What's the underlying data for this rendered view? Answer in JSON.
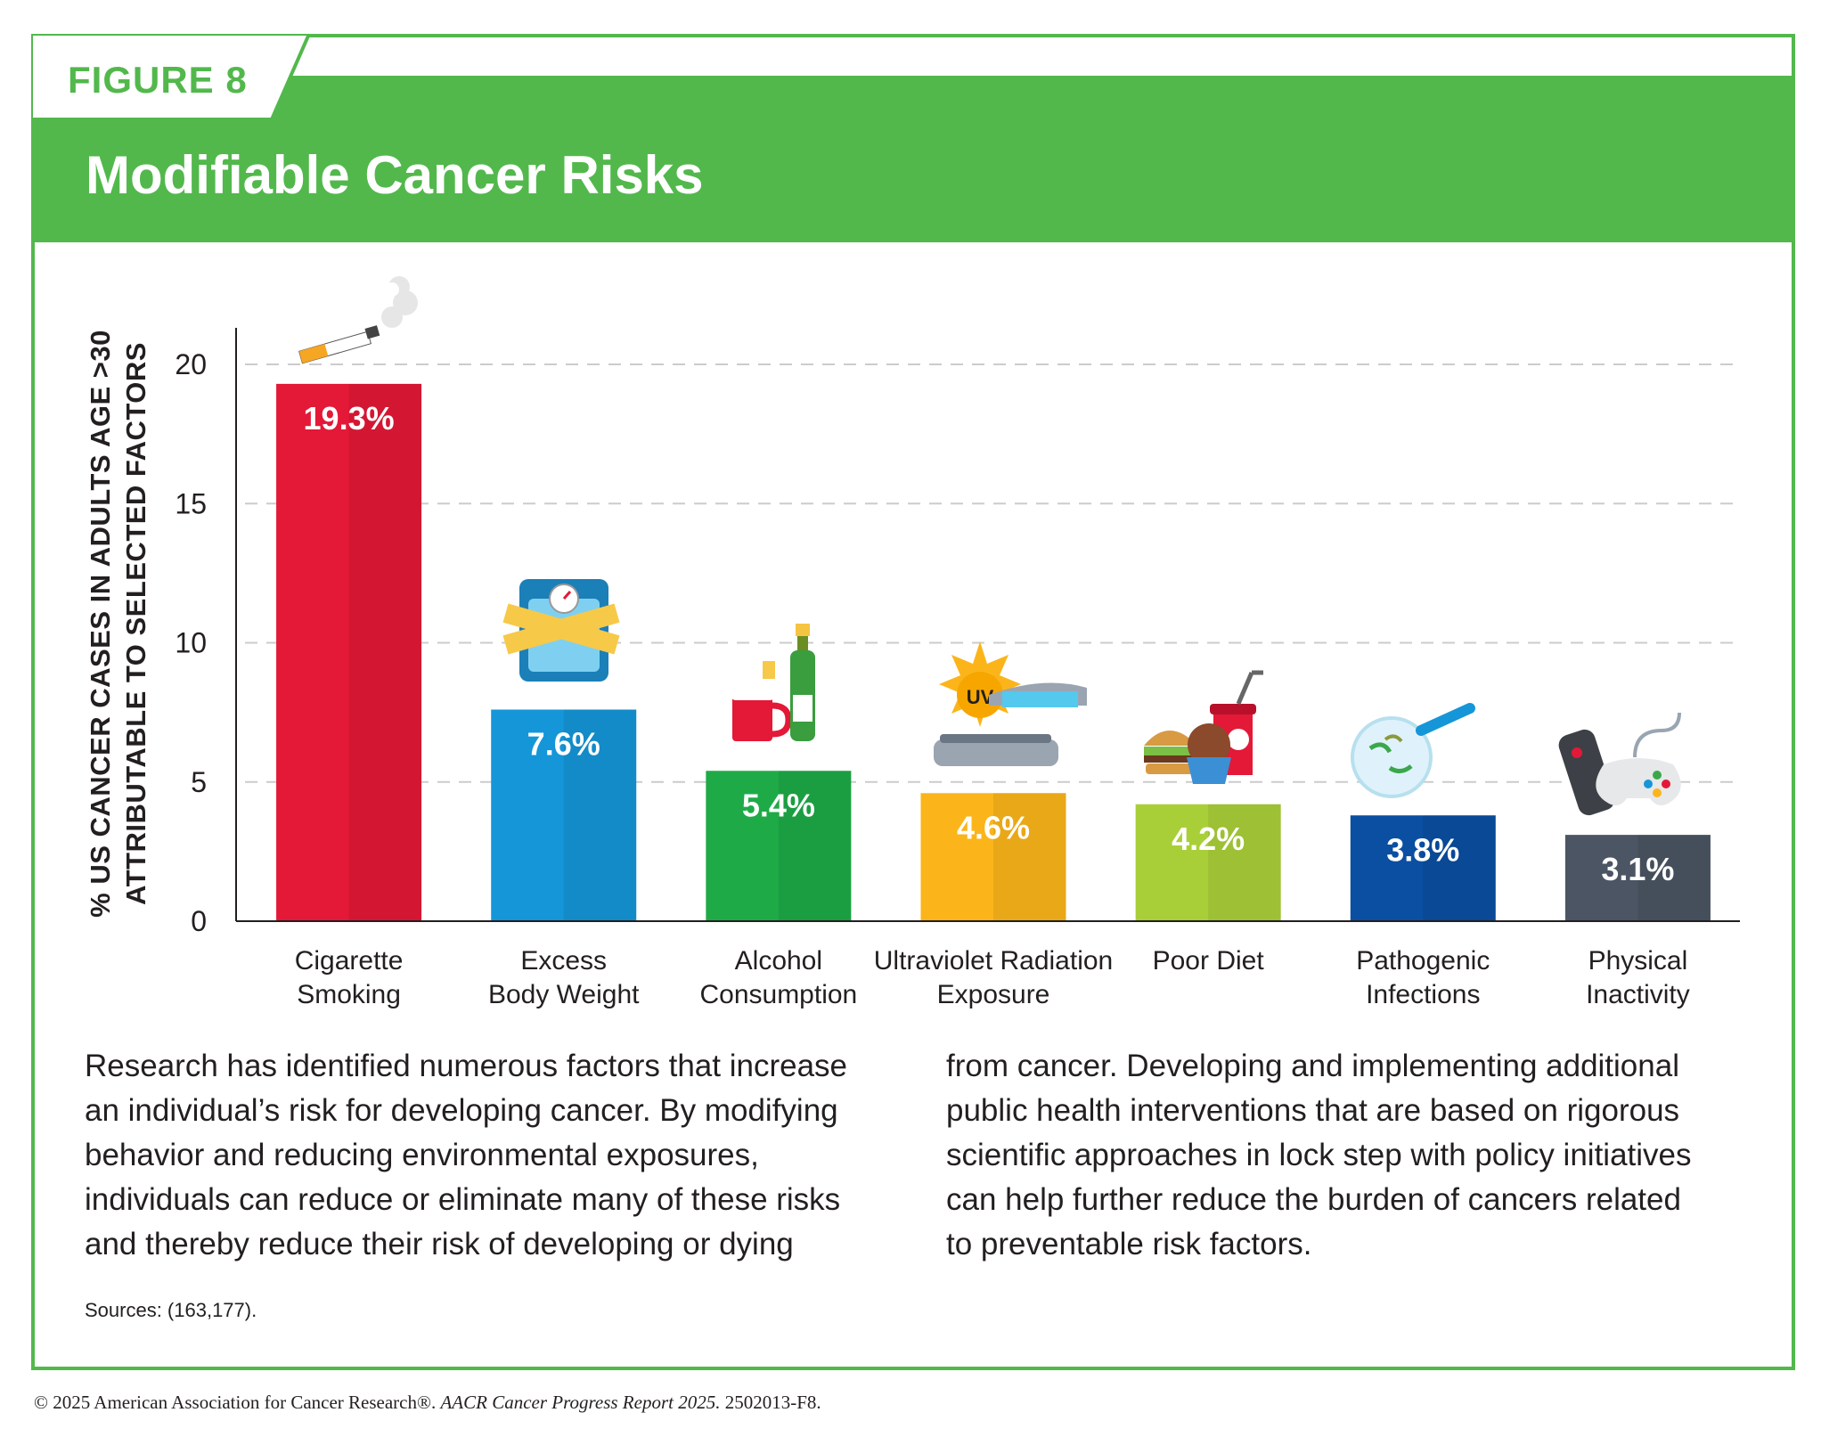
{
  "header": {
    "figure_label": "FIGURE 8",
    "title": "Modifiable Cancer Risks"
  },
  "colors": {
    "brand_green": "#52b84c",
    "bars": [
      "#e31937",
      "#1596d8",
      "#1eab47",
      "#fbb51a",
      "#a9cf38",
      "#0a4fa1",
      "#4b5563"
    ]
  },
  "icons": [
    "cigarette-icon",
    "scale-with-tape-measure-icon",
    "beer-mug-and-champagne-icon",
    "uv-tanning-bed-icon",
    "burger-cupcake-soda-icon",
    "petri-dish-bacteria-icon",
    "remote-and-game-controller-icon"
  ],
  "chart_data": {
    "type": "bar",
    "title": "Modifiable Cancer Risks",
    "ylabel_line1": "% US CANCER CASES IN ADULTS AGE >30",
    "ylabel_line2": "ATTRIBUTABLE TO SELECTED FACTORS",
    "xlabel": "",
    "ylim": [
      0,
      21
    ],
    "yticks": [
      0,
      5,
      10,
      15,
      20
    ],
    "grid": true,
    "categories": [
      [
        "Cigarette",
        "Smoking"
      ],
      [
        "Excess",
        "Body Weight"
      ],
      [
        "Alcohol",
        "Consumption"
      ],
      [
        "Ultraviolet Radiation",
        "Exposure"
      ],
      [
        "Poor Diet",
        ""
      ],
      [
        "Pathogenic",
        "Infections"
      ],
      [
        "Physical",
        "Inactivity"
      ]
    ],
    "values": [
      19.3,
      7.6,
      5.4,
      4.6,
      4.2,
      3.8,
      3.1
    ],
    "value_labels": [
      "19.3%",
      "7.6%",
      "5.4%",
      "4.6%",
      "4.2%",
      "3.8%",
      "3.1%"
    ]
  },
  "body_text": {
    "left_lines": [
      "Research has identified numerous factors that increase",
      "an individual’s risk for developing cancer. By modifying",
      "behavior and reducing environmental exposures,",
      "individuals can reduce or eliminate many of these risks",
      "and thereby reduce their risk of developing or dying"
    ],
    "right_lines": [
      "from cancer. Developing and implementing additional",
      "public health interventions that are based on rigorous",
      "scientific approaches in lock step with policy initiatives",
      "can help further reduce the burden of cancers related",
      "to preventable risk factors."
    ]
  },
  "sources": "Sources: (163,177).",
  "copyright": {
    "prefix": "© 2025 American Association for Cancer Research®.",
    "report": "AACR Cancer Progress Report 2025.",
    "code": "2502013-F8."
  }
}
